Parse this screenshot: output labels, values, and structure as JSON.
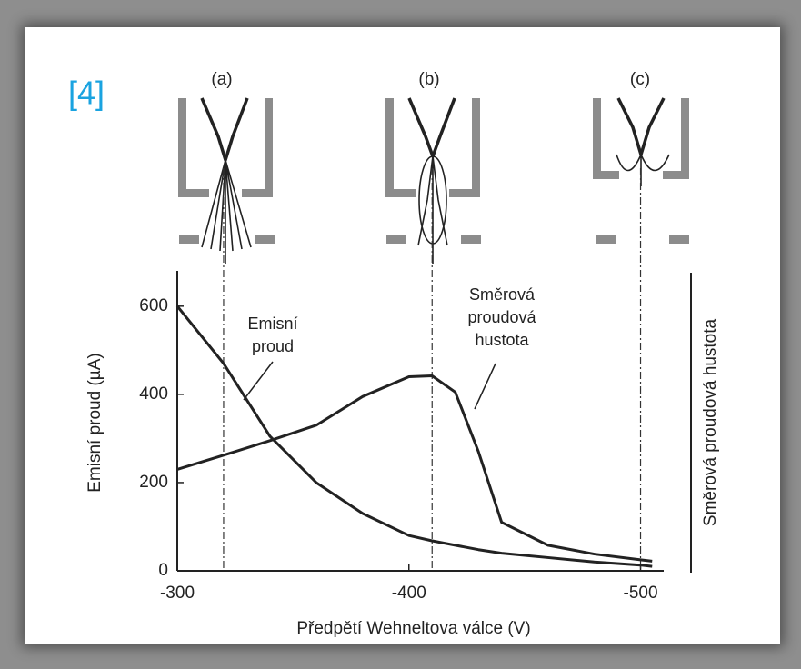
{
  "chart_data": {
    "type": "line",
    "tag": "[4]",
    "panel_labels": [
      "(a)",
      "(b)",
      "(c)"
    ],
    "ylabel": "Emisní proud (µA)",
    "y2label": "Směrová proudová hustota",
    "xlabel": "Předpětí Wehneltova válce (V)",
    "x": [
      -300,
      -320,
      -340,
      -360,
      -380,
      -400,
      -410,
      -420,
      -430,
      -440,
      -460,
      -480,
      -500,
      -505
    ],
    "series": [
      {
        "name_lines": [
          "Emisní",
          "proud"
        ],
        "color": "#222222",
        "values": [
          600,
          470,
          305,
          200,
          130,
          80,
          68,
          58,
          48,
          40,
          30,
          20,
          13,
          10
        ]
      },
      {
        "name_lines": [
          "Směrová",
          "proudová",
          "hustota"
        ],
        "color": "#222222",
        "values": [
          230,
          262,
          295,
          330,
          395,
          440,
          442,
          405,
          270,
          110,
          58,
          38,
          25,
          22
        ]
      }
    ],
    "reference_lines": [
      -320,
      -410,
      -500
    ],
    "xlim": [
      -300,
      -510
    ],
    "xticks": [
      -300,
      -400,
      -500
    ],
    "ylim": [
      0,
      680
    ],
    "yticks": [
      0,
      200,
      400,
      600
    ]
  }
}
